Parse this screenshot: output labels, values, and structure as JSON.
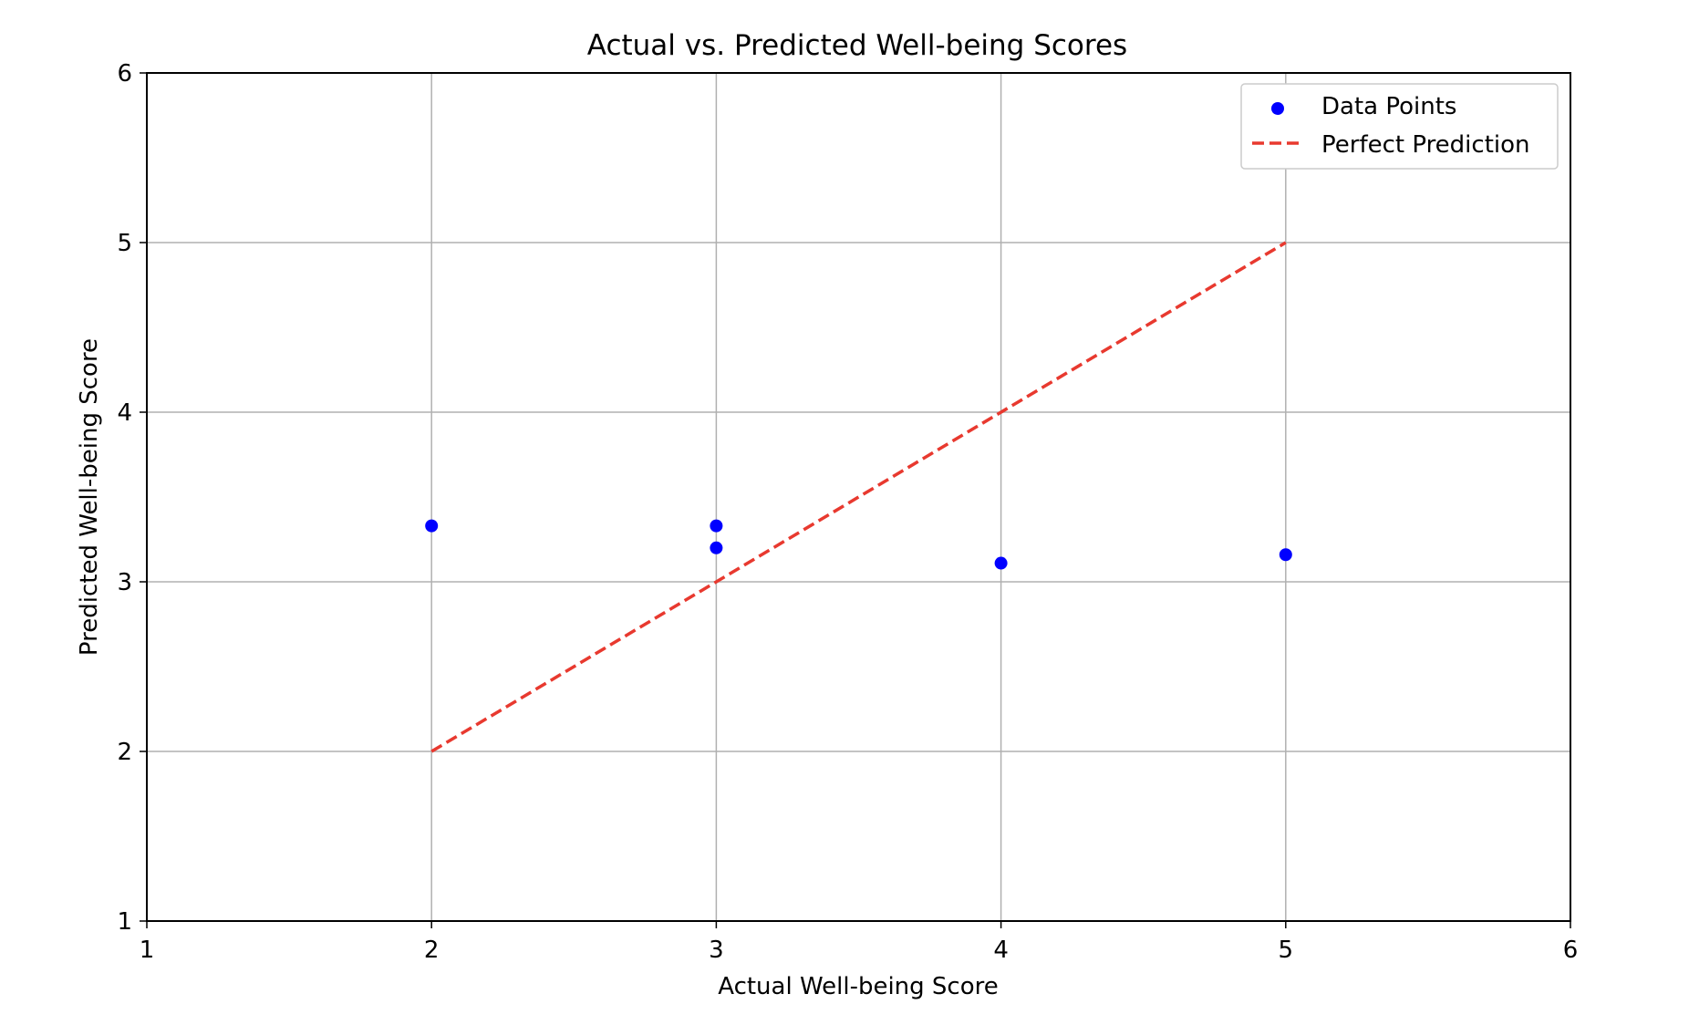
{
  "chart_data": {
    "type": "scatter",
    "title": "Actual vs. Predicted Well-being Scores",
    "xlabel": "Actual Well-being Score",
    "ylabel": "Predicted Well-being Score",
    "xlim": [
      1,
      6
    ],
    "ylim": [
      1,
      6
    ],
    "x_ticks": [
      "1",
      "2",
      "3",
      "4",
      "5",
      "6"
    ],
    "y_ticks": [
      "1",
      "2",
      "3",
      "4",
      "5",
      "6"
    ],
    "grid": true,
    "legend_position": "top-right",
    "series": [
      {
        "name": "Data Points",
        "kind": "scatter",
        "color": "#0000ff",
        "points": [
          {
            "x": 2,
            "y": 3.33
          },
          {
            "x": 3,
            "y": 3.33
          },
          {
            "x": 3,
            "y": 3.2
          },
          {
            "x": 4,
            "y": 3.11
          },
          {
            "x": 5,
            "y": 3.16
          }
        ]
      },
      {
        "name": "Perfect Prediction",
        "kind": "line",
        "style": "dashed",
        "color": "#e8392f",
        "points": [
          {
            "x": 2,
            "y": 2
          },
          {
            "x": 5,
            "y": 5
          }
        ]
      }
    ]
  }
}
